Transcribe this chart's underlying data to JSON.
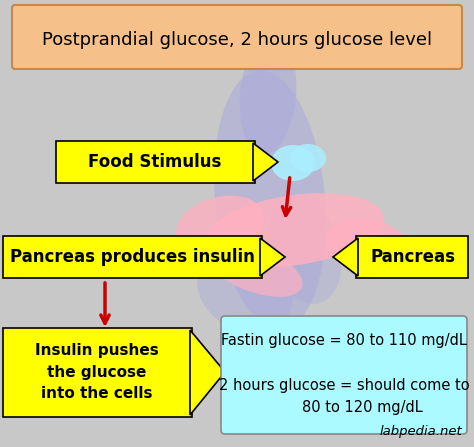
{
  "title": "Postprandial glucose, 2 hours glucose level",
  "title_box_color": "#F5C08A",
  "title_box_edge": "#C8864A",
  "bg_color": "#C8C8C8",
  "food_stimulus_label": "Food Stimulus",
  "food_stimulus_box_color": "#FFFF00",
  "pancreas_label": "Pancreas",
  "pancreas_box_color": "#FFFF00",
  "pancreas_produces_label": "Pancreas produces insulin",
  "pancreas_produces_box_color": "#FFFF00",
  "insulin_pushes_label": "Insulin pushes\nthe glucose\ninto the cells",
  "insulin_pushes_box_color": "#FFFF00",
  "info_box_color": "#AAFAFF",
  "info_text": "Fastin glucose = 80 to 110 mg/dL\n\n2 hours glucose = should come to\n        80 to 120 mg/dL",
  "watermark": "labpedia.net",
  "arrow_color": "#CC0000",
  "organ_blue": "#AAAADD",
  "organ_pink": "#FFB0C0",
  "organ_cyan": "#AAEEFF"
}
